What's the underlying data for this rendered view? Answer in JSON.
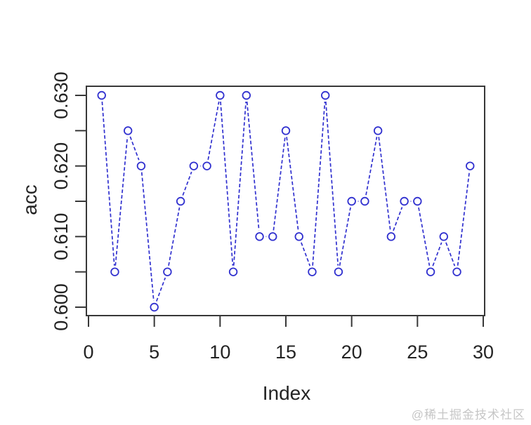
{
  "figure": {
    "background": "#ffffff",
    "watermark": "@稀土掘金技术社区",
    "watermark_color": "#c6c6c6",
    "axis_color": "#383838",
    "text_color": "#242424"
  },
  "chart_data": {
    "type": "line",
    "title": "",
    "xlabel": "Index",
    "ylabel": "acc",
    "x": [
      1,
      2,
      3,
      4,
      5,
      6,
      7,
      8,
      9,
      10,
      11,
      12,
      13,
      14,
      15,
      16,
      17,
      18,
      19,
      20,
      21,
      22,
      23,
      24,
      25,
      26,
      27,
      28,
      29
    ],
    "y": [
      0.63,
      0.605,
      0.625,
      0.62,
      0.6,
      0.605,
      0.615,
      0.62,
      0.62,
      0.63,
      0.605,
      0.63,
      0.61,
      0.61,
      0.625,
      0.61,
      0.605,
      0.63,
      0.605,
      0.615,
      0.615,
      0.625,
      0.61,
      0.615,
      0.615,
      0.605,
      0.61,
      0.605,
      0.62
    ],
    "x_axis_range": [
      0,
      30
    ],
    "ylim": [
      0.6,
      0.63
    ],
    "x_ticks": [
      0,
      5,
      10,
      15,
      20,
      25,
      30
    ],
    "x_tick_labels": [
      "0",
      "5",
      "10",
      "15",
      "20",
      "25",
      "30"
    ],
    "y_ticks_minor": [
      0.6,
      0.605,
      0.61,
      0.615,
      0.62,
      0.625,
      0.63
    ],
    "y_ticks_labeled": [
      0.6,
      0.61,
      0.62,
      0.63
    ],
    "y_tick_labels": [
      "0.600",
      "0.610",
      "0.620",
      "0.630"
    ],
    "line_color": "#3030cf",
    "marker": "open-circle",
    "grid": false,
    "legend": null
  }
}
